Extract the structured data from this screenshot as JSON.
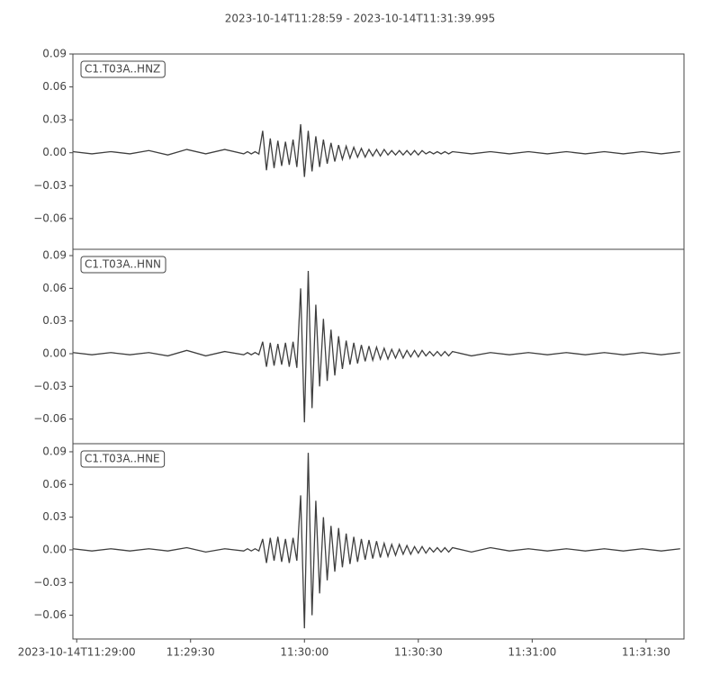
{
  "title": "2023-10-14T11:28:59  -  2023-10-14T11:31:39.995",
  "chart_data": [
    {
      "type": "line",
      "x": [
        0,
        5,
        10,
        15,
        20,
        25,
        30,
        35,
        40,
        45,
        46,
        47,
        48,
        49,
        50,
        51,
        52,
        53,
        54,
        55,
        56,
        57,
        58,
        59,
        60,
        61,
        62,
        63,
        64,
        65,
        66,
        67,
        68,
        69,
        70,
        71,
        72,
        73,
        74,
        75,
        76,
        77,
        78,
        79,
        80,
        81,
        82,
        83,
        84,
        85,
        86,
        87,
        88,
        89,
        90,
        91,
        92,
        93,
        94,
        95,
        96,
        97,
        98,
        99,
        100,
        105,
        110,
        115,
        120,
        125,
        130,
        135,
        140,
        145,
        150,
        155,
        160
      ],
      "series": [
        {
          "name": "C1.T03A..HNZ",
          "color": "#3f3f3f",
          "values": [
            0.001,
            -0.001,
            0.001,
            -0.001,
            0.002,
            -0.002,
            0.003,
            -0.001,
            0.003,
            -0.001,
            0.001,
            -0.001,
            0.001,
            -0.001,
            0.02,
            -0.016,
            0.013,
            -0.014,
            0.011,
            -0.012,
            0.01,
            -0.011,
            0.012,
            -0.013,
            0.026,
            -0.022,
            0.02,
            -0.017,
            0.015,
            -0.013,
            0.012,
            -0.01,
            0.009,
            -0.008,
            0.007,
            -0.006,
            0.006,
            -0.005,
            0.005,
            -0.004,
            0.004,
            -0.004,
            0.003,
            -0.003,
            0.003,
            -0.003,
            0.003,
            -0.002,
            0.002,
            -0.002,
            0.002,
            -0.002,
            0.002,
            -0.002,
            0.002,
            -0.002,
            0.002,
            -0.001,
            0.001,
            -0.001,
            0.001,
            -0.001,
            0.001,
            -0.001,
            0.001,
            -0.001,
            0.001,
            -0.001,
            0.001,
            -0.001,
            0.001,
            -0.001,
            0.001,
            -0.001,
            0.001,
            -0.001,
            0.001
          ]
        }
      ],
      "xlim": [
        0,
        160.995
      ],
      "ylim": [
        -0.088,
        0.09
      ],
      "yticks": [
        0.09,
        0.06,
        0.03,
        {
          "value": 0,
          "label": "0.00"
        },
        {
          "value": -0.03,
          "label": "−0.03"
        },
        {
          "value": -0.06,
          "label": "−0.06"
        }
      ]
    },
    {
      "type": "line",
      "x": [
        0,
        5,
        10,
        15,
        20,
        25,
        30,
        35,
        40,
        45,
        46,
        47,
        48,
        49,
        50,
        51,
        52,
        53,
        54,
        55,
        56,
        57,
        58,
        59,
        60,
        61,
        62,
        63,
        64,
        65,
        66,
        67,
        68,
        69,
        70,
        71,
        72,
        73,
        74,
        75,
        76,
        77,
        78,
        79,
        80,
        81,
        82,
        83,
        84,
        85,
        86,
        87,
        88,
        89,
        90,
        91,
        92,
        93,
        94,
        95,
        96,
        97,
        98,
        99,
        100,
        105,
        110,
        115,
        120,
        125,
        130,
        135,
        140,
        145,
        150,
        155,
        160
      ],
      "series": [
        {
          "name": "C1.T03A..HNN",
          "color": "#3f3f3f",
          "values": [
            0.001,
            -0.001,
            0.001,
            -0.001,
            0.001,
            -0.002,
            0.003,
            -0.002,
            0.002,
            -0.001,
            0.001,
            -0.001,
            0.001,
            -0.001,
            0.011,
            -0.012,
            0.01,
            -0.011,
            0.009,
            -0.01,
            0.01,
            -0.012,
            0.011,
            -0.013,
            0.06,
            -0.063,
            0.076,
            -0.05,
            0.045,
            -0.03,
            0.032,
            -0.025,
            0.022,
            -0.02,
            0.016,
            -0.014,
            0.012,
            -0.01,
            0.01,
            -0.009,
            0.008,
            -0.007,
            0.007,
            -0.006,
            0.006,
            -0.005,
            0.005,
            -0.005,
            0.004,
            -0.004,
            0.004,
            -0.004,
            0.003,
            -0.003,
            0.003,
            -0.003,
            0.003,
            -0.002,
            0.002,
            -0.002,
            0.002,
            -0.002,
            0.002,
            -0.002,
            0.002,
            -0.002,
            0.001,
            -0.001,
            0.001,
            -0.001,
            0.001,
            -0.001,
            0.001,
            -0.001,
            0.001,
            -0.001,
            0.001
          ]
        }
      ],
      "xlim": [
        0,
        160.995
      ],
      "ylim": [
        -0.0826,
        0.0958
      ],
      "yticks": [
        0.09,
        0.06,
        0.03,
        {
          "value": 0,
          "label": "0.00"
        },
        {
          "value": -0.03,
          "label": "−0.03"
        },
        {
          "value": -0.06,
          "label": "−0.06"
        }
      ]
    },
    {
      "type": "line",
      "x": [
        0,
        5,
        10,
        15,
        20,
        25,
        30,
        35,
        40,
        45,
        46,
        47,
        48,
        49,
        50,
        51,
        52,
        53,
        54,
        55,
        56,
        57,
        58,
        59,
        60,
        61,
        62,
        63,
        64,
        65,
        66,
        67,
        68,
        69,
        70,
        71,
        72,
        73,
        74,
        75,
        76,
        77,
        78,
        79,
        80,
        81,
        82,
        83,
        84,
        85,
        86,
        87,
        88,
        89,
        90,
        91,
        92,
        93,
        94,
        95,
        96,
        97,
        98,
        99,
        100,
        105,
        110,
        115,
        120,
        125,
        130,
        135,
        140,
        145,
        150,
        155,
        160
      ],
      "series": [
        {
          "name": "C1.T03A..HNE",
          "color": "#3f3f3f",
          "values": [
            0.001,
            -0.001,
            0.001,
            -0.001,
            0.001,
            -0.001,
            0.002,
            -0.002,
            0.001,
            -0.001,
            0.001,
            -0.001,
            0.001,
            -0.001,
            0.01,
            -0.012,
            0.011,
            -0.01,
            0.012,
            -0.011,
            0.01,
            -0.012,
            0.011,
            -0.01,
            0.05,
            -0.072,
            0.089,
            -0.06,
            0.045,
            -0.04,
            0.03,
            -0.028,
            0.022,
            -0.02,
            0.02,
            -0.016,
            0.015,
            -0.013,
            0.012,
            -0.011,
            0.01,
            -0.009,
            0.009,
            -0.008,
            0.008,
            -0.007,
            0.006,
            -0.006,
            0.005,
            -0.005,
            0.005,
            -0.004,
            0.004,
            -0.004,
            0.003,
            -0.003,
            0.003,
            -0.003,
            0.002,
            -0.002,
            0.002,
            -0.002,
            0.002,
            -0.002,
            0.002,
            -0.002,
            0.002,
            -0.001,
            0.001,
            -0.001,
            0.001,
            -0.001,
            0.001,
            -0.001,
            0.001,
            -0.001,
            0.001
          ]
        }
      ],
      "xlim": [
        0,
        160.995
      ],
      "ylim": [
        -0.0818,
        0.0974
      ],
      "yticks": [
        0.09,
        0.06,
        0.03,
        {
          "value": 0,
          "label": "0.00"
        },
        {
          "value": -0.03,
          "label": "−0.03"
        },
        {
          "value": -0.06,
          "label": "−0.06"
        }
      ],
      "xticks": [
        {
          "value": 1,
          "label": "2023-10-14T11:29:00"
        },
        {
          "value": 31,
          "label": "11:29:30"
        },
        {
          "value": 61,
          "label": "11:30:00"
        },
        {
          "value": 91,
          "label": "11:30:30"
        },
        {
          "value": 121,
          "label": "11:31:00"
        },
        {
          "value": 151,
          "label": "11:31:30"
        }
      ]
    }
  ]
}
